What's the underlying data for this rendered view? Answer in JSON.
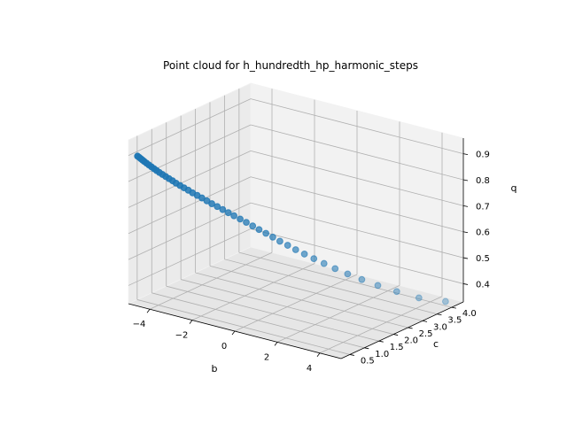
{
  "chart_data": {
    "type": "scatter",
    "title": "Point cloud for h_hundredth_hp_harmonic_steps",
    "xlabel": "b",
    "ylabel": "c",
    "zlabel": "q",
    "xlim": [
      -5,
      5
    ],
    "ylim": [
      0.2,
      4.4
    ],
    "zlim": [
      0.33,
      0.96
    ],
    "x_ticks": [
      -4,
      -2,
      0,
      2,
      4
    ],
    "y_ticks": [
      0.5,
      1.0,
      1.5,
      2.0,
      2.5,
      3.0,
      3.5,
      4.0
    ],
    "z_ticks": [
      0.4,
      0.5,
      0.6,
      0.7,
      0.8,
      0.9
    ],
    "x_tick_labels": [
      "−4",
      "−2",
      "0",
      "2",
      "4"
    ],
    "y_tick_labels": [
      "0.5",
      "1.0",
      "1.5",
      "2.0",
      "2.5",
      "3.0",
      "3.5",
      "4.0"
    ],
    "z_tick_labels": [
      "0.4",
      "0.5",
      "0.6",
      "0.7",
      "0.8",
      "0.9"
    ],
    "grid": true,
    "marker_color": "#1f77b4",
    "points": [
      [
        -4.6,
        0.22,
        0.905
      ],
      [
        -4.55,
        0.24,
        0.9
      ],
      [
        -4.5,
        0.26,
        0.895
      ],
      [
        -4.45,
        0.28,
        0.89
      ],
      [
        -4.4,
        0.3,
        0.885
      ],
      [
        -4.33,
        0.33,
        0.878
      ],
      [
        -4.26,
        0.36,
        0.871
      ],
      [
        -4.18,
        0.39,
        0.864
      ],
      [
        -4.1,
        0.42,
        0.857
      ],
      [
        -4.02,
        0.45,
        0.85
      ],
      [
        -3.93,
        0.48,
        0.843
      ],
      [
        -3.84,
        0.52,
        0.835
      ],
      [
        -3.74,
        0.56,
        0.827
      ],
      [
        -3.64,
        0.6,
        0.819
      ],
      [
        -3.53,
        0.64,
        0.811
      ],
      [
        -3.42,
        0.68,
        0.802
      ],
      [
        -3.3,
        0.73,
        0.793
      ],
      [
        -3.18,
        0.78,
        0.784
      ],
      [
        -3.05,
        0.83,
        0.775
      ],
      [
        -2.92,
        0.88,
        0.765
      ],
      [
        -2.78,
        0.94,
        0.755
      ],
      [
        -2.64,
        1.0,
        0.745
      ],
      [
        -2.49,
        1.06,
        0.734
      ],
      [
        -2.34,
        1.12,
        0.723
      ],
      [
        -2.18,
        1.19,
        0.712
      ],
      [
        -2.02,
        1.26,
        0.7
      ],
      [
        -1.85,
        1.33,
        0.688
      ],
      [
        -1.68,
        1.4,
        0.676
      ],
      [
        -1.5,
        1.48,
        0.663
      ],
      [
        -1.32,
        1.56,
        0.65
      ],
      [
        -1.13,
        1.64,
        0.636
      ],
      [
        -0.94,
        1.72,
        0.622
      ],
      [
        -0.74,
        1.81,
        0.607
      ],
      [
        -0.54,
        1.9,
        0.592
      ],
      [
        -0.33,
        1.99,
        0.576
      ],
      [
        -0.1,
        2.09,
        0.56
      ],
      [
        0.14,
        2.19,
        0.543
      ],
      [
        0.4,
        2.3,
        0.526
      ],
      [
        0.68,
        2.42,
        0.508
      ],
      [
        0.98,
        2.55,
        0.489
      ],
      [
        1.31,
        2.69,
        0.469
      ],
      [
        1.68,
        2.85,
        0.448
      ],
      [
        2.1,
        3.03,
        0.426
      ],
      [
        2.58,
        3.23,
        0.403
      ],
      [
        3.14,
        3.47,
        0.379
      ],
      [
        3.8,
        3.75,
        0.354
      ],
      [
        4.6,
        4.08,
        0.34
      ]
    ]
  }
}
